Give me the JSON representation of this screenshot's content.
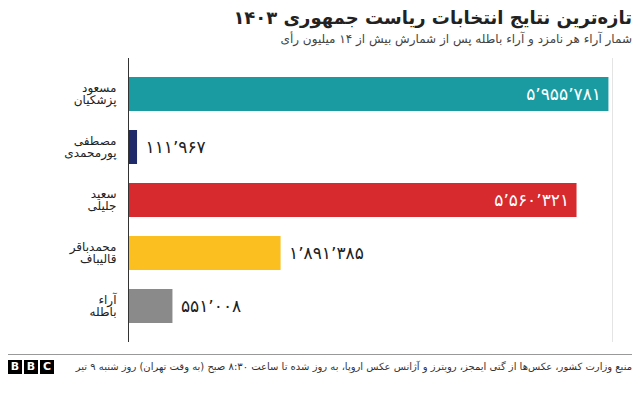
{
  "chart_data": {
    "type": "bar",
    "orientation": "horizontal",
    "title": "تازه‌ترین نتایج انتخابات ریاست جمهوری ۱۴۰۳",
    "subtitle": "شمار آراء هر نامزد و آراء باطله پس از شمارش بیش از ۱۴ میلیون رأی",
    "caption": "منبع وزارت کشور، عکس‌ها از گتی ایمجز، رویترز و آژانس عکس اروپا، به روز شده تا ساعت ۸:۳۰ صبح (به وقت تهران) روز شنبه ۹ تیر",
    "logo": "BBC",
    "categories": [
      "مسعود پزشکیان",
      "مصطفی پورمحمدی",
      "سعید جلیلی",
      "محمدباقر قالیباف",
      "آراء باطله"
    ],
    "values": [
      5955781,
      111967,
      5560321,
      1891385,
      551008
    ],
    "value_labels": [
      "۵٬۹۵۵٬۷۸۱",
      "۱۱۱٬۹۶۷",
      "۵٬۵۶۰٬۳۲۱",
      "۱٬۸۹۱٬۳۸۵",
      "۵۵۱٬۰۰۸"
    ],
    "colors": [
      "#1a9ba1",
      "#1f2a6b",
      "#d62a2f",
      "#fbbf1f",
      "#8a8a8a"
    ],
    "xlim": [
      0,
      6000000
    ],
    "xticks": [],
    "data_labels": true,
    "tick_labels": "y",
    "grid": false
  }
}
